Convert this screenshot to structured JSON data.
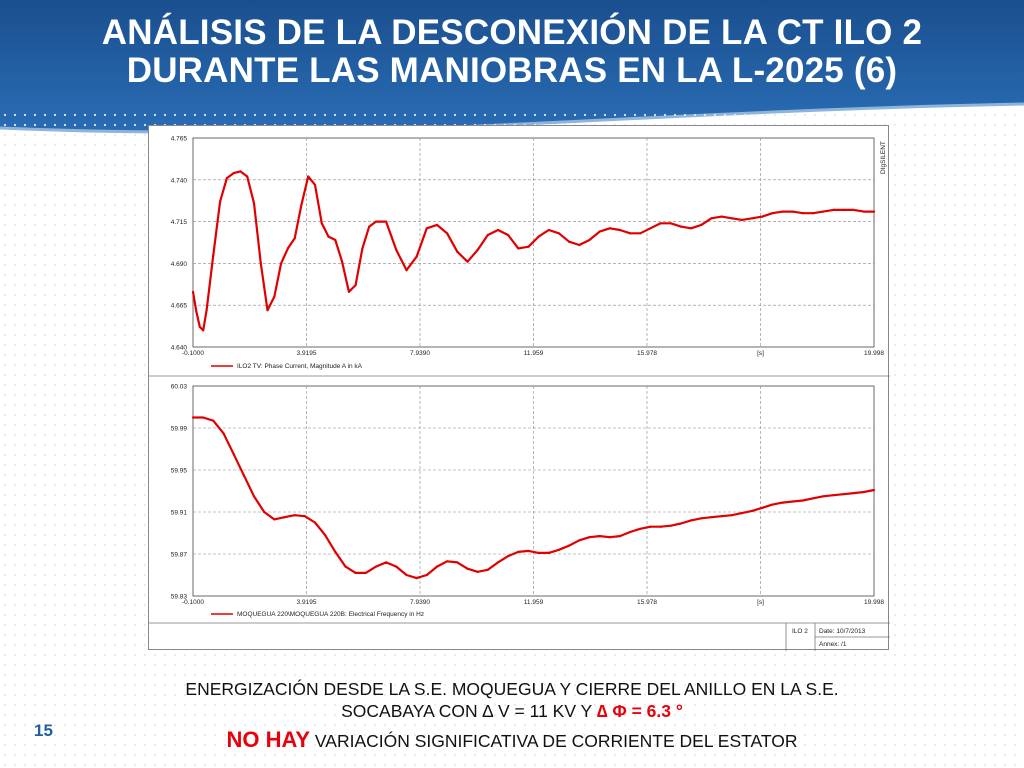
{
  "slide": {
    "title_line1": "ANÁLISIS DE LA DESCONEXIÓN DE LA CT ILO 2",
    "title_line2": "DURANTE LAS MANIOBRAS EN LA L-2025 (6)",
    "page_number": "15",
    "caption_line1": "ENERGIZACIÓN DESDE LA S.E. MOQUEGUA  Y CIERRE DEL ANILLO EN LA S.E.",
    "caption_line2_prefix": "SOCABAYA  CON ∆ V = 11 KV Y ",
    "caption_line2_highlight": "∆ Φ = 6.3 °",
    "caption_line3_highlight": "NO HAY",
    "caption_line3_rest": " VARIACIÓN SIGNIFICATIVA DE CORRIENTE DEL ESTATOR"
  },
  "chart_footer": {
    "logo": "DIgSILENT",
    "station": "ILO 2",
    "date": "Date: 10/7/2013",
    "annex": "Annex:   /1"
  },
  "chart_data": [
    {
      "type": "line",
      "x_ticks": [
        "-0.1000",
        "3.9195",
        "7.9390",
        "11.959",
        "15.978",
        "[s]",
        "19.998"
      ],
      "y_ticks": [
        "4.765",
        "4.740",
        "4.715",
        "4.690",
        "4.665",
        "4.640"
      ],
      "xlim": [
        -0.1,
        19.998
      ],
      "ylim": [
        4.64,
        4.765
      ],
      "color": "#e00000",
      "legend": "ILO2 TV: Phase Current, Magnitude A in kA",
      "x": [
        -0.1,
        0.0,
        0.1,
        0.2,
        0.3,
        0.5,
        0.7,
        0.9,
        1.1,
        1.3,
        1.5,
        1.7,
        1.9,
        2.1,
        2.3,
        2.5,
        2.7,
        2.9,
        3.1,
        3.3,
        3.5,
        3.7,
        3.9,
        4.1,
        4.3,
        4.5,
        4.7,
        4.9,
        5.1,
        5.3,
        5.6,
        5.9,
        6.2,
        6.5,
        6.8,
        7.1,
        7.4,
        7.7,
        8.0,
        8.3,
        8.6,
        8.9,
        9.2,
        9.5,
        9.8,
        10.1,
        10.4,
        10.7,
        11.0,
        11.3,
        11.6,
        11.9,
        12.2,
        12.5,
        12.8,
        13.1,
        13.4,
        13.7,
        14.0,
        14.3,
        14.6,
        14.9,
        15.2,
        15.5,
        15.8,
        16.1,
        16.4,
        16.7,
        17.0,
        17.3,
        17.6,
        17.9,
        18.2,
        18.5,
        18.8,
        19.1,
        19.4,
        19.7,
        19.998
      ],
      "y": [
        4.673,
        4.661,
        4.652,
        4.65,
        4.662,
        4.695,
        4.727,
        4.741,
        4.744,
        4.745,
        4.742,
        4.726,
        4.69,
        4.662,
        4.67,
        4.69,
        4.699,
        4.705,
        4.725,
        4.742,
        4.737,
        4.714,
        4.706,
        4.704,
        4.691,
        4.673,
        4.677,
        4.699,
        4.712,
        4.715,
        4.715,
        4.698,
        4.686,
        4.694,
        4.711,
        4.713,
        4.708,
        4.697,
        4.691,
        4.698,
        4.707,
        4.71,
        4.707,
        4.699,
        4.7,
        4.706,
        4.71,
        4.708,
        4.703,
        4.701,
        4.704,
        4.709,
        4.711,
        4.71,
        4.708,
        4.708,
        4.711,
        4.714,
        4.714,
        4.712,
        4.711,
        4.713,
        4.717,
        4.718,
        4.717,
        4.716,
        4.717,
        4.718,
        4.72,
        4.721,
        4.721,
        4.72,
        4.72,
        4.721,
        4.722,
        4.722,
        4.722,
        4.721,
        4.721
      ]
    },
    {
      "type": "line",
      "x_ticks": [
        "-0.1000",
        "3.9195",
        "7.9390",
        "11.959",
        "15.978",
        "[s]",
        "19.998"
      ],
      "y_ticks": [
        "60.03",
        "59.99",
        "59.95",
        "59.91",
        "59.87",
        "59.83"
      ],
      "xlim": [
        -0.1,
        19.998
      ],
      "ylim": [
        59.83,
        60.03
      ],
      "color": "#e00000",
      "legend": "MOQUEGUA 220\\MOQUEGUA 220B: Electrical Frequency in Hz",
      "x": [
        -0.1,
        0.2,
        0.5,
        0.8,
        1.1,
        1.4,
        1.7,
        2.0,
        2.3,
        2.6,
        2.9,
        3.2,
        3.5,
        3.8,
        4.1,
        4.4,
        4.7,
        5.0,
        5.3,
        5.6,
        5.9,
        6.2,
        6.5,
        6.8,
        7.1,
        7.4,
        7.7,
        8.0,
        8.3,
        8.6,
        8.9,
        9.2,
        9.5,
        9.8,
        10.1,
        10.4,
        10.7,
        11.0,
        11.3,
        11.6,
        11.9,
        12.2,
        12.5,
        12.8,
        13.1,
        13.4,
        13.7,
        14.0,
        14.3,
        14.6,
        14.9,
        15.2,
        15.5,
        15.8,
        16.1,
        16.4,
        16.7,
        17.0,
        17.3,
        17.6,
        17.9,
        18.2,
        18.5,
        18.8,
        19.1,
        19.4,
        19.7,
        19.998
      ],
      "y": [
        60.0,
        60.0,
        59.997,
        59.985,
        59.965,
        59.945,
        59.925,
        59.91,
        59.903,
        59.905,
        59.907,
        59.906,
        59.9,
        59.888,
        59.872,
        59.858,
        59.852,
        59.852,
        59.858,
        59.862,
        59.858,
        59.85,
        59.847,
        59.85,
        59.858,
        59.863,
        59.862,
        59.856,
        59.853,
        59.855,
        59.862,
        59.868,
        59.872,
        59.873,
        59.871,
        59.871,
        59.874,
        59.878,
        59.883,
        59.886,
        59.887,
        59.886,
        59.887,
        59.891,
        59.894,
        59.896,
        59.896,
        59.897,
        59.899,
        59.902,
        59.904,
        59.905,
        59.906,
        59.907,
        59.909,
        59.911,
        59.914,
        59.917,
        59.919,
        59.92,
        59.921,
        59.923,
        59.925,
        59.926,
        59.927,
        59.928,
        59.929,
        59.931
      ]
    }
  ]
}
